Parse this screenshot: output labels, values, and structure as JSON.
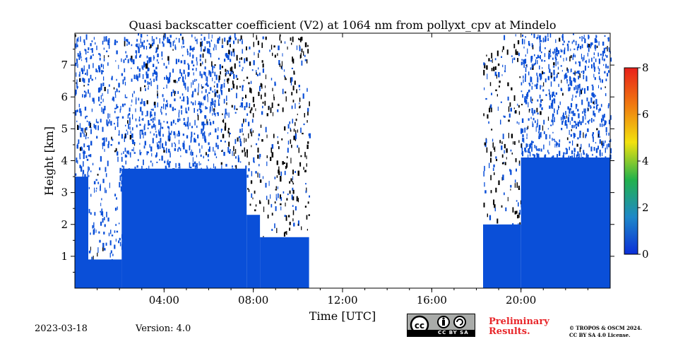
{
  "chart_data": {
    "type": "heatmap",
    "title": "Quasi backscatter coefficient (V2) at 1064 nm from pollyxt_cpv at Mindelo",
    "xlabel": "Time [UTC]",
    "ylabel": "Height [km]",
    "xlim": [
      0,
      24
    ],
    "ylim": [
      0,
      8
    ],
    "x_ticks": [
      {
        "value": 4,
        "label": "04:00"
      },
      {
        "value": 8,
        "label": "08:00"
      },
      {
        "value": 12,
        "label": "12:00"
      },
      {
        "value": 16,
        "label": "16:00"
      },
      {
        "value": 20,
        "label": "20:00"
      }
    ],
    "y_ticks": [
      {
        "value": 1,
        "label": "1"
      },
      {
        "value": 2,
        "label": "2"
      },
      {
        "value": 3,
        "label": "3"
      },
      {
        "value": 4,
        "label": "4"
      },
      {
        "value": 5,
        "label": "5"
      },
      {
        "value": 6,
        "label": "6"
      },
      {
        "value": 7,
        "label": "7"
      }
    ],
    "colorbar": {
      "range": [
        0,
        8
      ],
      "ticks": [
        {
          "value": 0,
          "label": "0"
        },
        {
          "value": 2,
          "label": "2"
        },
        {
          "value": 4,
          "label": "4"
        },
        {
          "value": 6,
          "label": "6"
        },
        {
          "value": 8,
          "label": "8"
        }
      ],
      "colors": [
        "#0b2fd8",
        "#1e88c8",
        "#22b24c",
        "#f2e20e",
        "#f07a10",
        "#e8201a"
      ]
    },
    "dense_layer_color": "#0a4fd8",
    "no_data_intervals": [
      [
        10.5,
        18.3
      ]
    ],
    "layer_segments": [
      {
        "start": 0.0,
        "end": 0.6,
        "top_km": 3.5
      },
      {
        "start": 0.6,
        "end": 2.1,
        "top_km": 0.9
      },
      {
        "start": 2.1,
        "end": 7.7,
        "top_km": 3.75
      },
      {
        "start": 7.7,
        "end": 8.3,
        "top_km": 2.3
      },
      {
        "start": 8.3,
        "end": 10.5,
        "top_km": 1.6
      },
      {
        "start": 18.3,
        "end": 20.0,
        "top_km": 2.0
      },
      {
        "start": 20.0,
        "end": 24.0,
        "top_km": 4.1
      }
    ]
  },
  "footer": {
    "date": "2023-03-18",
    "version": "Version: 4.0",
    "license_badge": "CC BY SA",
    "preliminary_line1": "Preliminary",
    "preliminary_line2": "Results.",
    "copyright_line1": "© TROPOS & OSCM 2024.",
    "copyright_line2": "CC BY SA 4.0 License."
  }
}
